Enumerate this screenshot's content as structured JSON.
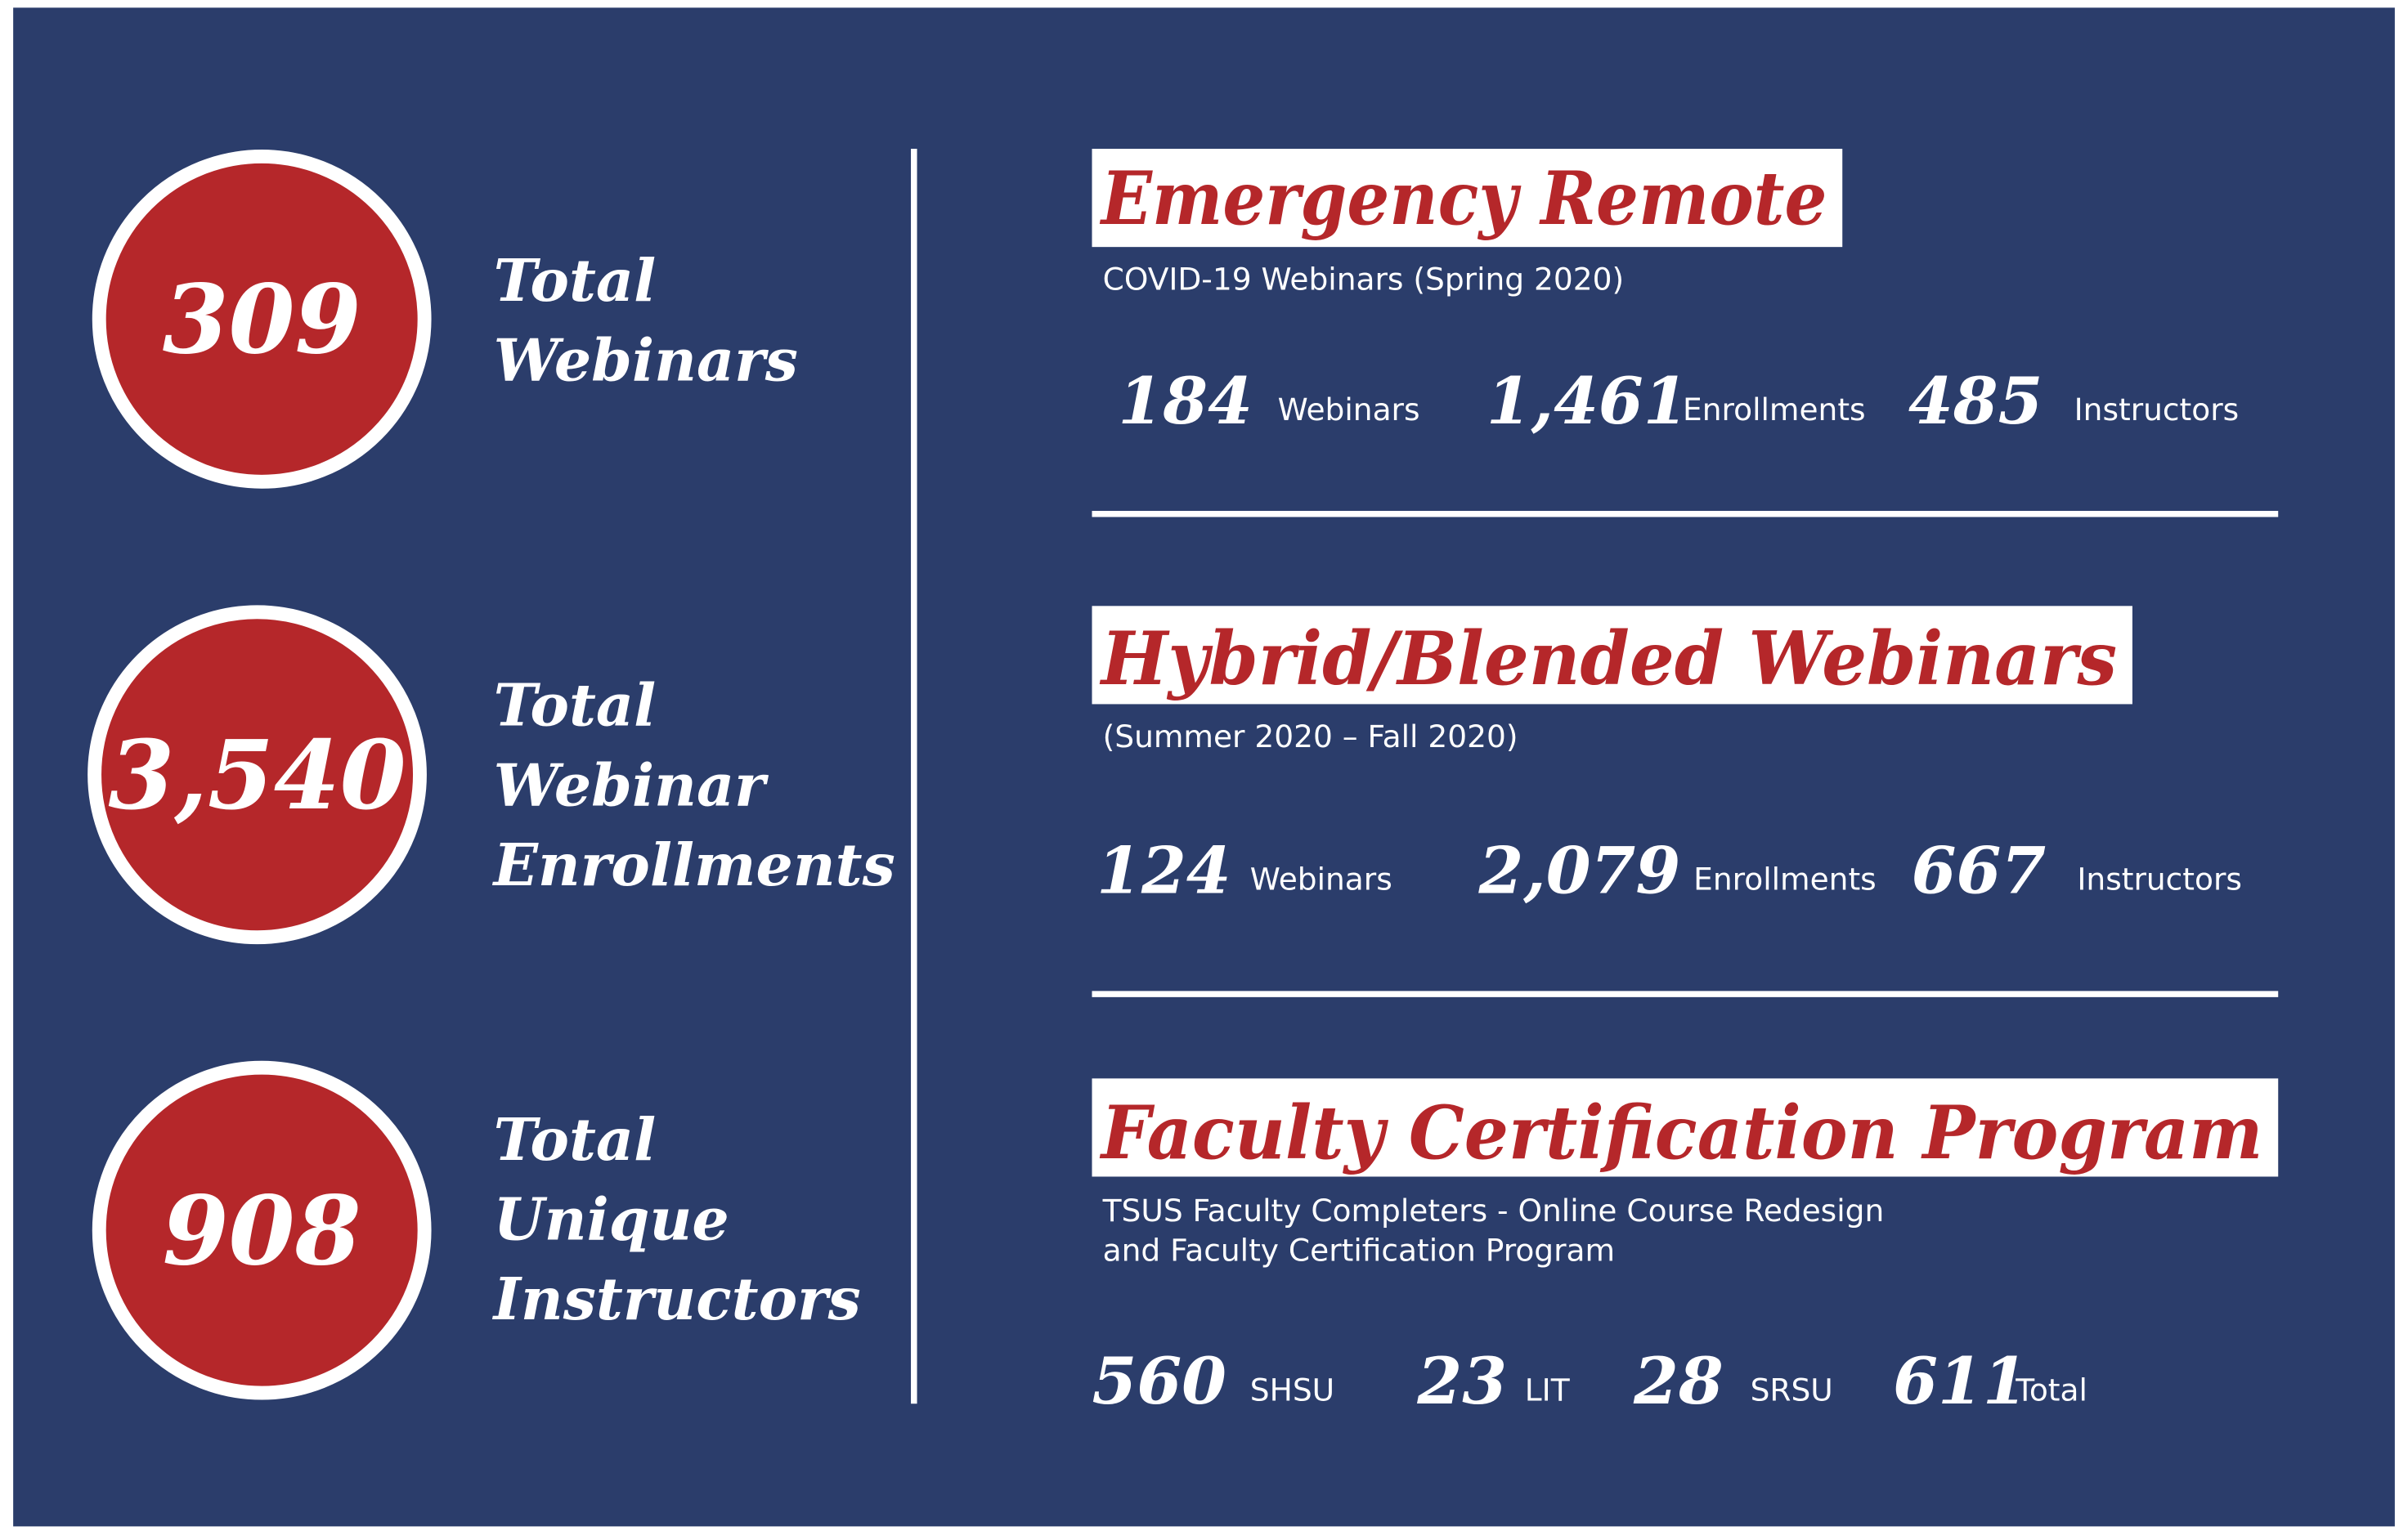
{
  "totals": [
    {
      "value": "309",
      "label": [
        "Total",
        "Webinars"
      ]
    },
    {
      "value": "3,540",
      "label": [
        "Total",
        "Webinar",
        "Enrollments"
      ]
    },
    {
      "value": "908",
      "label": [
        "Total",
        "Unique",
        "Instructors"
      ]
    }
  ],
  "sections": [
    {
      "title": "Emergency Remote",
      "subtitle": [
        "COVID-19 Webinars (Spring 2020)"
      ],
      "stats": [
        {
          "value": "184",
          "label": "Webinars"
        },
        {
          "value": "1,461",
          "label": "Enrollments"
        },
        {
          "value": "485",
          "label": "Instructors"
        }
      ]
    },
    {
      "title": "Hybrid/Blended Webinars",
      "subtitle": [
        "(Summer 2020 – Fall 2020)"
      ],
      "stats": [
        {
          "value": "124",
          "label": "Webinars"
        },
        {
          "value": "2,079",
          "label": "Enrollments"
        },
        {
          "value": "667",
          "label": "Instructors"
        }
      ]
    },
    {
      "title": "Faculty Certification Program",
      "subtitle": [
        "TSUS Faculty Completers - Online Course Redesign",
        "and Faculty Certification Program"
      ],
      "stats": [
        {
          "value": "560",
          "label": "SHSU"
        },
        {
          "value": "23",
          "label": "LIT"
        },
        {
          "value": "28",
          "label": "SRSU"
        },
        {
          "value": "611",
          "label": "Total"
        }
      ]
    }
  ]
}
